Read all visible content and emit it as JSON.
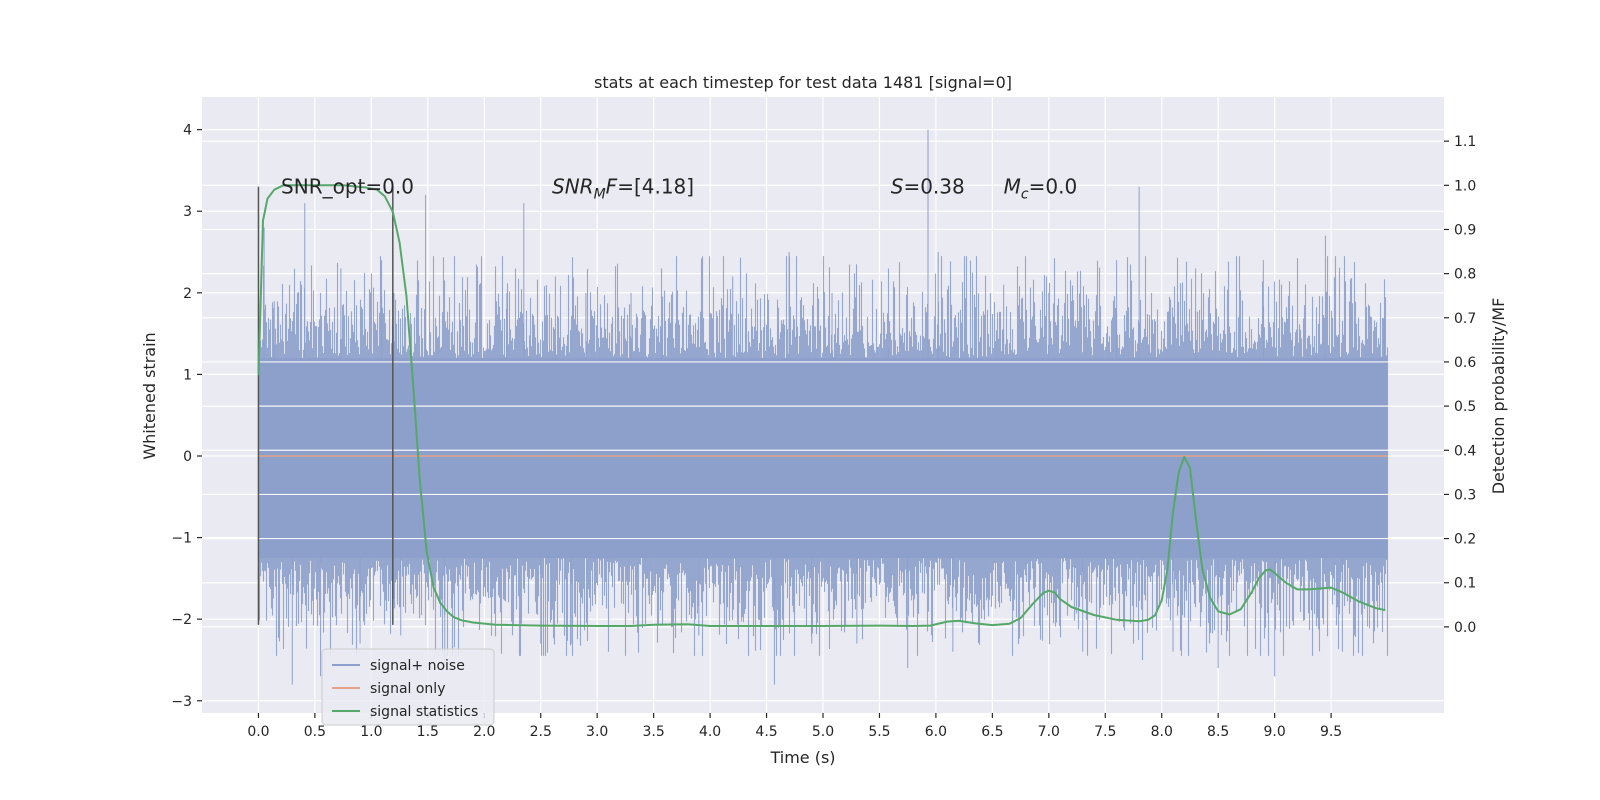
{
  "chart_data": {
    "type": "line",
    "title": "stats at each timestep for test data 1481 [signal=0]",
    "xlabel": "Time (s)",
    "ylabel": "Whitened strain",
    "y2label": "Detection probability/MF",
    "xlim": [
      -0.5,
      10.5
    ],
    "ylim": [
      -3.15,
      4.4
    ],
    "y2lim": [
      -0.195,
      1.2
    ],
    "xticks": [
      0.0,
      0.5,
      1.0,
      1.5,
      2.0,
      2.5,
      3.0,
      3.5,
      4.0,
      4.5,
      5.0,
      5.5,
      6.0,
      6.5,
      7.0,
      7.5,
      8.0,
      8.5,
      9.0,
      9.5
    ],
    "xtick_labels": [
      "0.0",
      "0.5",
      "1.0",
      "1.5",
      "2.0",
      "2.5",
      "3.0",
      "3.5",
      "4.0",
      "4.5",
      "5.0",
      "5.5",
      "6.0",
      "6.5",
      "7.0",
      "7.5",
      "8.0",
      "8.5",
      "9.0",
      "9.5"
    ],
    "yticks": [
      -3,
      -2,
      -1,
      0,
      1,
      2,
      3,
      4
    ],
    "ytick_labels": [
      "−3",
      "−2",
      "−1",
      "0",
      "1",
      "2",
      "3",
      "4"
    ],
    "y2ticks": [
      0.0,
      0.1,
      0.2,
      0.3,
      0.4,
      0.5,
      0.6,
      0.7,
      0.8,
      0.9,
      1.0,
      1.1
    ],
    "y2tick_labels": [
      "0.0",
      "0.1",
      "0.2",
      "0.3",
      "0.4",
      "0.5",
      "0.6",
      "0.7",
      "0.8",
      "0.9",
      "1.0",
      "1.1"
    ],
    "grid": true,
    "legend_position": "lower-left",
    "annotations": [
      {
        "text": "SNR_opt=0.0",
        "x": 0.2,
        "y": 3.3
      },
      {
        "text": "SNR",
        "sub": "M",
        "suffix": "F=[4.18]",
        "italic": true,
        "x": 2.6,
        "y": 3.3
      },
      {
        "text": "S",
        "suffix": "=0.38",
        "italic": true,
        "x": 5.6,
        "y": 3.3
      },
      {
        "text": "M",
        "sub": "c",
        "suffix": "=0.0",
        "italic": true,
        "x": 6.6,
        "y": 3.3
      }
    ],
    "vertical_markers": [
      {
        "x": 0.0,
        "y_from": -2.07,
        "y_to": 3.3
      },
      {
        "x": 1.19,
        "y_from": -2.07,
        "y_to": 3.3
      }
    ],
    "series": [
      {
        "name": "signal+ noise",
        "color": "#8da0cb",
        "axis": "left",
        "x_range": [
          0.0,
          10.0
        ],
        "band": [
          -1.25,
          1.2
        ],
        "peaks": [
          [
            0.05,
            2.8
          ],
          [
            0.14,
            1.9
          ],
          [
            0.3,
            -2.8
          ],
          [
            0.41,
            3.1
          ],
          [
            0.55,
            -2.7
          ],
          [
            0.73,
            2.3
          ],
          [
            0.9,
            -2.3
          ],
          [
            1.09,
            2.4
          ],
          [
            1.2,
            2.0
          ],
          [
            1.26,
            -2.2
          ],
          [
            1.48,
            3.2
          ],
          [
            1.65,
            -2.6
          ],
          [
            2.2,
            2.0
          ],
          [
            2.35,
            3.1
          ],
          [
            2.5,
            -2.3
          ],
          [
            2.63,
            2.2
          ],
          [
            2.77,
            -2.3
          ],
          [
            2.9,
            2.0
          ],
          [
            3.1,
            -2.4
          ],
          [
            3.3,
            2.0
          ],
          [
            3.57,
            2.3
          ],
          [
            3.9,
            -2.2
          ],
          [
            4.2,
            2.2
          ],
          [
            4.57,
            -2.8
          ],
          [
            4.7,
            2.5
          ],
          [
            4.9,
            -2.3
          ],
          [
            5.08,
            2.0
          ],
          [
            5.3,
            -2.3
          ],
          [
            5.58,
            2.3
          ],
          [
            5.75,
            -2.6
          ],
          [
            5.93,
            4.0
          ],
          [
            6.02,
            2.5
          ],
          [
            6.15,
            -2.4
          ],
          [
            6.6,
            2.1
          ],
          [
            7.0,
            2.0
          ],
          [
            7.3,
            -2.4
          ],
          [
            7.6,
            2.4
          ],
          [
            7.8,
            3.3
          ],
          [
            7.83,
            -2.5
          ],
          [
            8.1,
            -2.4
          ],
          [
            8.3,
            2.3
          ],
          [
            8.5,
            -2.6
          ],
          [
            8.9,
            2.4
          ],
          [
            9.0,
            -2.7
          ],
          [
            9.45,
            2.7
          ],
          [
            9.6,
            -2.4
          ],
          [
            9.97,
            1.7
          ]
        ]
      },
      {
        "name": "signal only",
        "color": "#e5a388",
        "axis": "left",
        "x": [
          0.0,
          10.0
        ],
        "y": [
          0.0,
          0.0
        ]
      },
      {
        "name": "signal statistics",
        "color": "#55a868",
        "axis": "right",
        "x": [
          0.0,
          0.04,
          0.08,
          0.14,
          0.22,
          0.35,
          0.55,
          0.75,
          0.95,
          1.05,
          1.12,
          1.19,
          1.25,
          1.31,
          1.37,
          1.43,
          1.49,
          1.55,
          1.61,
          1.67,
          1.73,
          1.8,
          1.9,
          2.1,
          2.5,
          3.0,
          3.3,
          3.5,
          3.8,
          4.0,
          4.5,
          5.0,
          5.5,
          5.8,
          5.95,
          6.1,
          6.2,
          6.35,
          6.5,
          6.65,
          6.75,
          6.85,
          6.95,
          7.0,
          7.05,
          7.1,
          7.2,
          7.4,
          7.6,
          7.8,
          7.88,
          7.94,
          8.0,
          8.05,
          8.1,
          8.15,
          8.2,
          8.25,
          8.3,
          8.36,
          8.43,
          8.5,
          8.6,
          8.7,
          8.8,
          8.86,
          8.92,
          8.96,
          9.0,
          9.1,
          9.2,
          9.3,
          9.5,
          9.6,
          9.75,
          9.9,
          9.98
        ],
        "y": [
          0.57,
          0.92,
          0.97,
          0.99,
          1.0,
          1.0,
          1.0,
          1.0,
          0.995,
          0.99,
          0.975,
          0.94,
          0.87,
          0.75,
          0.55,
          0.33,
          0.17,
          0.09,
          0.055,
          0.035,
          0.022,
          0.015,
          0.01,
          0.005,
          0.003,
          0.002,
          0.002,
          0.005,
          0.006,
          0.002,
          0.002,
          0.002,
          0.003,
          0.002,
          0.003,
          0.012,
          0.014,
          0.008,
          0.004,
          0.007,
          0.02,
          0.05,
          0.077,
          0.082,
          0.078,
          0.063,
          0.045,
          0.027,
          0.016,
          0.013,
          0.016,
          0.026,
          0.06,
          0.13,
          0.26,
          0.35,
          0.385,
          0.36,
          0.25,
          0.13,
          0.065,
          0.035,
          0.028,
          0.04,
          0.08,
          0.11,
          0.128,
          0.13,
          0.122,
          0.1,
          0.085,
          0.085,
          0.089,
          0.078,
          0.057,
          0.042,
          0.038
        ]
      }
    ]
  }
}
